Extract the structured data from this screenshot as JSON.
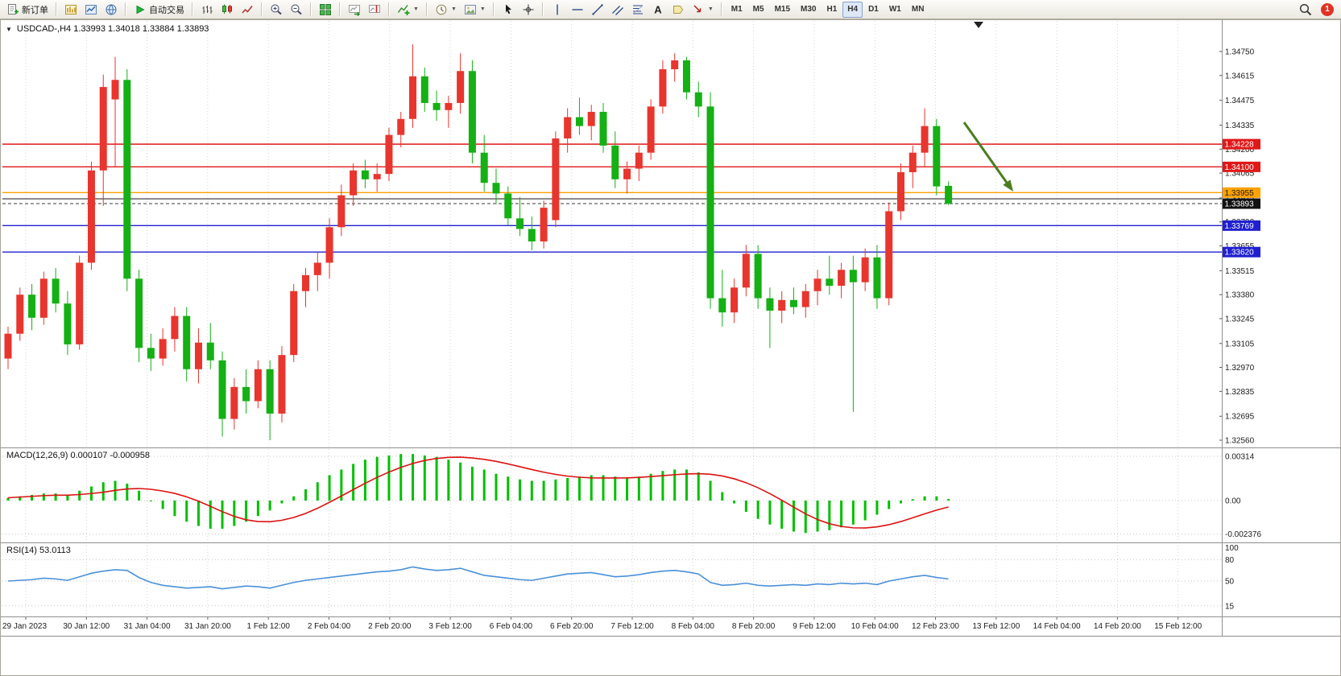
{
  "toolbar": {
    "groups": [
      {
        "name": "trade",
        "buttons": [
          {
            "name": "new-order-button",
            "icon": "doc-new-icon",
            "label": "新订单"
          }
        ]
      },
      {
        "name": "windows",
        "buttons": [
          {
            "name": "market-watch-button",
            "icon": "chart-gold-icon"
          },
          {
            "name": "data-window-button",
            "icon": "chart-blue-icon"
          },
          {
            "name": "web-terminal-button",
            "icon": "globe-icon"
          }
        ]
      },
      {
        "name": "auto-trading",
        "buttons": [
          {
            "name": "auto-trading-button",
            "icon": "play-icon",
            "label": "自动交易"
          }
        ]
      },
      {
        "name": "chart-types",
        "buttons": [
          {
            "name": "bar-chart-button",
            "icon": "ohlc-bars-icon"
          },
          {
            "name": "candlestick-chart-button",
            "icon": "candles-icon"
          },
          {
            "name": "line-chart-button",
            "icon": "line-chart-icon"
          }
        ]
      },
      {
        "name": "zoom",
        "buttons": [
          {
            "name": "zoom-in-button",
            "icon": "zoom-in-icon"
          },
          {
            "name": "zoom-out-button",
            "icon": "zoom-out-icon"
          }
        ]
      },
      {
        "name": "window-layout",
        "buttons": [
          {
            "name": "tile-windows-button",
            "icon": "tile-windows-icon"
          }
        ]
      },
      {
        "name": "chart-scroll",
        "buttons": [
          {
            "name": "auto-scroll-button",
            "icon": "auto-scroll-icon"
          },
          {
            "name": "chart-shift-button",
            "icon": "chart-shift-icon"
          }
        ]
      },
      {
        "name": "indicators",
        "buttons": [
          {
            "name": "indicators-button",
            "icon": "indicator-add-icon",
            "caret": true
          }
        ]
      },
      {
        "name": "periods-templates",
        "buttons": [
          {
            "name": "periods-button",
            "icon": "clock-icon",
            "caret": true
          },
          {
            "name": "templates-button",
            "icon": "template-icon",
            "caret": true
          }
        ]
      },
      {
        "name": "pointer-tools",
        "buttons": [
          {
            "name": "cursor-button",
            "icon": "cursor-icon"
          },
          {
            "name": "crosshair-button",
            "icon": "crosshair-icon"
          }
        ]
      },
      {
        "name": "draw-tools",
        "buttons": [
          {
            "name": "vertical-line-button",
            "icon": "vline-icon"
          },
          {
            "name": "horizontal-line-button",
            "icon": "hline-icon"
          },
          {
            "name": "trendline-button",
            "icon": "trendline-icon"
          },
          {
            "name": "channel-button",
            "icon": "channel-icon"
          },
          {
            "name": "fibonacci-button",
            "icon": "fibonacci-icon"
          },
          {
            "name": "text-button",
            "icon": "text-icon"
          },
          {
            "name": "label-button",
            "icon": "label-icon"
          },
          {
            "name": "arrows-button",
            "icon": "arrow-draw-icon",
            "caret": true
          }
        ]
      },
      {
        "name": "timeframes",
        "type": "timeframes"
      }
    ],
    "timeframes": {
      "items": [
        "M1",
        "M5",
        "M15",
        "M30",
        "H1",
        "H4",
        "D1",
        "W1",
        "MN"
      ],
      "active": "H4"
    },
    "right": {
      "search_icon": "search-icon",
      "badge_text": "1"
    }
  },
  "chart_header": {
    "collapse_glyph": "▼",
    "title": "USDCAD-,H4  1.33993 1.34018 1.33884 1.33893"
  },
  "chart_data": {
    "type": "candlestick",
    "symbol": "USDCAD-",
    "period": "H4",
    "ohlc_display": {
      "open": 1.33993,
      "high": 1.34018,
      "low": 1.33884,
      "close": 1.33893
    },
    "up_color": "#e8352e",
    "down_color": "#14b014",
    "price_ticks": [
      1.3475,
      1.34615,
      1.34475,
      1.34335,
      1.342,
      1.34065,
      1.33925,
      1.3379,
      1.33655,
      1.33515,
      1.3338,
      1.33245,
      1.33105,
      1.3297,
      1.32835,
      1.32695,
      1.3256
    ],
    "levels": [
      {
        "price": 1.34228,
        "color": "#e01818",
        "label": "1.34228",
        "text": "#ffffff"
      },
      {
        "price": 1.341,
        "color": "#e01818",
        "label": "1.34100",
        "text": "#ffffff"
      },
      {
        "price": 1.33955,
        "color": "#ffa200",
        "label": "1.33955",
        "text": "#1a1a1a"
      },
      {
        "price": 1.3392,
        "color": "#555555"
      },
      {
        "price": 1.33769,
        "color": "#2020d0",
        "label": "1.33769",
        "text": "#ffffff"
      },
      {
        "price": 1.3362,
        "color": "#2020d0",
        "label": "1.33620",
        "text": "#ffffff"
      }
    ],
    "current_price": {
      "value": 1.33893,
      "label": "1.33893",
      "box_color": "#111111",
      "text": "#ffffff"
    },
    "candles": [
      [
        1.3302,
        1.332,
        1.3296,
        1.3316
      ],
      [
        1.3316,
        1.3342,
        1.3312,
        1.3338
      ],
      [
        1.3338,
        1.3344,
        1.3318,
        1.3325
      ],
      [
        1.3325,
        1.3351,
        1.3321,
        1.3347
      ],
      [
        1.3347,
        1.3353,
        1.3328,
        1.3333
      ],
      [
        1.3333,
        1.334,
        1.3304,
        1.331
      ],
      [
        1.331,
        1.336,
        1.3307,
        1.3356
      ],
      [
        1.3356,
        1.3413,
        1.3352,
        1.3408
      ],
      [
        1.3408,
        1.3462,
        1.3388,
        1.3455
      ],
      [
        1.3448,
        1.3472,
        1.341,
        1.3459
      ],
      [
        1.3459,
        1.3465,
        1.334,
        1.3347
      ],
      [
        1.3347,
        1.3352,
        1.33,
        1.3308
      ],
      [
        1.3308,
        1.3316,
        1.3295,
        1.3302
      ],
      [
        1.3302,
        1.3319,
        1.3298,
        1.3313
      ],
      [
        1.3313,
        1.3331,
        1.3306,
        1.3326
      ],
      [
        1.3326,
        1.3331,
        1.3289,
        1.3296
      ],
      [
        1.3296,
        1.3319,
        1.3288,
        1.3311
      ],
      [
        1.3311,
        1.3322,
        1.3296,
        1.3301
      ],
      [
        1.3301,
        1.3306,
        1.3258,
        1.3268
      ],
      [
        1.3268,
        1.3291,
        1.3262,
        1.3286
      ],
      [
        1.3286,
        1.3296,
        1.3271,
        1.3278
      ],
      [
        1.3278,
        1.3301,
        1.3274,
        1.3296
      ],
      [
        1.3296,
        1.3301,
        1.3256,
        1.3271
      ],
      [
        1.3271,
        1.3309,
        1.3266,
        1.3304
      ],
      [
        1.3304,
        1.3344,
        1.33,
        1.334
      ],
      [
        1.334,
        1.3353,
        1.3331,
        1.3349
      ],
      [
        1.3349,
        1.3362,
        1.334,
        1.3356
      ],
      [
        1.3356,
        1.3381,
        1.3347,
        1.3376
      ],
      [
        1.3376,
        1.34,
        1.3371,
        1.3394
      ],
      [
        1.3394,
        1.3412,
        1.3388,
        1.3408
      ],
      [
        1.3408,
        1.3414,
        1.3398,
        1.3403
      ],
      [
        1.3403,
        1.3412,
        1.3396,
        1.3406
      ],
      [
        1.3406,
        1.3432,
        1.3402,
        1.3428
      ],
      [
        1.3428,
        1.3441,
        1.3421,
        1.3437
      ],
      [
        1.3437,
        1.3479,
        1.3432,
        1.3461
      ],
      [
        1.3461,
        1.3466,
        1.3441,
        1.3446
      ],
      [
        1.3446,
        1.3453,
        1.3436,
        1.3442
      ],
      [
        1.3442,
        1.345,
        1.3432,
        1.3446
      ],
      [
        1.3446,
        1.3474,
        1.344,
        1.3464
      ],
      [
        1.3464,
        1.347,
        1.3412,
        1.3418
      ],
      [
        1.3418,
        1.3428,
        1.3396,
        1.3401
      ],
      [
        1.3401,
        1.3409,
        1.3389,
        1.3395
      ],
      [
        1.3395,
        1.3399,
        1.3377,
        1.3381
      ],
      [
        1.3381,
        1.3393,
        1.3371,
        1.3375
      ],
      [
        1.3375,
        1.3382,
        1.3363,
        1.3368
      ],
      [
        1.3368,
        1.3391,
        1.3364,
        1.3387
      ],
      [
        1.338,
        1.343,
        1.3376,
        1.3426
      ],
      [
        1.3426,
        1.3443,
        1.3418,
        1.3438
      ],
      [
        1.3438,
        1.3449,
        1.3428,
        1.3433
      ],
      [
        1.3433,
        1.3445,
        1.3425,
        1.3441
      ],
      [
        1.3441,
        1.3446,
        1.3418,
        1.3422
      ],
      [
        1.3422,
        1.343,
        1.3398,
        1.3403
      ],
      [
        1.3403,
        1.3413,
        1.3395,
        1.3409
      ],
      [
        1.3409,
        1.3422,
        1.3402,
        1.3418
      ],
      [
        1.3418,
        1.3448,
        1.3414,
        1.3444
      ],
      [
        1.3444,
        1.347,
        1.344,
        1.3465
      ],
      [
        1.3465,
        1.3474,
        1.3458,
        1.347
      ],
      [
        1.347,
        1.3472,
        1.3448,
        1.3452
      ],
      [
        1.3452,
        1.3458,
        1.3438,
        1.3444
      ],
      [
        1.3444,
        1.3452,
        1.333,
        1.3336
      ],
      [
        1.3336,
        1.3352,
        1.332,
        1.3328
      ],
      [
        1.3328,
        1.3347,
        1.3322,
        1.3342
      ],
      [
        1.3342,
        1.3366,
        1.3337,
        1.3361
      ],
      [
        1.3361,
        1.3366,
        1.333,
        1.3336
      ],
      [
        1.3336,
        1.3342,
        1.3308,
        1.3329
      ],
      [
        1.3329,
        1.334,
        1.3322,
        1.3335
      ],
      [
        1.3335,
        1.3342,
        1.3327,
        1.3331
      ],
      [
        1.3331,
        1.3344,
        1.3325,
        1.334
      ],
      [
        1.334,
        1.3352,
        1.3332,
        1.3347
      ],
      [
        1.3347,
        1.336,
        1.3338,
        1.3343
      ],
      [
        1.3343,
        1.3356,
        1.3336,
        1.3352
      ],
      [
        1.3352,
        1.336,
        1.3272,
        1.3345
      ],
      [
        1.3345,
        1.3364,
        1.334,
        1.3359
      ],
      [
        1.3359,
        1.3366,
        1.333,
        1.3336
      ],
      [
        1.3336,
        1.339,
        1.3332,
        1.3385
      ],
      [
        1.3385,
        1.3412,
        1.338,
        1.3407
      ],
      [
        1.3407,
        1.3422,
        1.3398,
        1.3418
      ],
      [
        1.3418,
        1.3443,
        1.341,
        1.3433
      ],
      [
        1.3433,
        1.3437,
        1.3394,
        1.3399
      ],
      [
        1.33993,
        1.34018,
        1.33884,
        1.33893
      ]
    ],
    "dates": [
      "29 Jan 2023",
      "30 Jan 12:00",
      "31 Jan 04:00",
      "31 Jan 20:00",
      "1 Feb 12:00",
      "2 Feb 04:00",
      "2 Feb 20:00",
      "3 Feb 12:00",
      "6 Feb 04:00",
      "6 Feb 20:00",
      "7 Feb 12:00",
      "8 Feb 04:00",
      "8 Feb 20:00",
      "9 Feb 12:00",
      "10 Feb 04:00",
      "12 Feb 23:00",
      "13 Feb 12:00",
      "14 Feb 04:00",
      "14 Feb 20:00",
      "15 Feb 12:00"
    ],
    "macd": {
      "label": "MACD(12,26,9)",
      "values_text": "0.000107 -0.000958",
      "line_color": "#00c000",
      "signal_color": "#dd1111",
      "axis": [
        {
          "v": 0.00314,
          "t": "0.00314"
        },
        {
          "v": 0,
          "t": "0.00"
        },
        {
          "v": -0.002376,
          "t": "-0.002376"
        }
      ],
      "hist": [
        0.0002,
        0.0003,
        0.0004,
        0.0005,
        0.0005,
        0.0004,
        0.0007,
        0.001,
        0.0013,
        0.0014,
        0.0012,
        0.0007,
        0.0,
        -0.0006,
        -0.0011,
        -0.0015,
        -0.0018,
        -0.002,
        -0.002,
        -0.0018,
        -0.0015,
        -0.0011,
        -0.0007,
        -0.0002,
        0.0003,
        0.0008,
        0.0013,
        0.0018,
        0.0022,
        0.0026,
        0.0029,
        0.0031,
        0.0032,
        0.0033,
        0.0033,
        0.0032,
        0.0031,
        0.0029,
        0.0027,
        0.0024,
        0.0022,
        0.0019,
        0.0017,
        0.0015,
        0.0014,
        0.0014,
        0.0015,
        0.0016,
        0.0017,
        0.0018,
        0.0018,
        0.0017,
        0.0016,
        0.0017,
        0.0019,
        0.0021,
        0.0022,
        0.0022,
        0.002,
        0.0014,
        0.0006,
        -0.0002,
        -0.0008,
        -0.0013,
        -0.0017,
        -0.002,
        -0.0022,
        -0.0023,
        -0.0022,
        -0.0021,
        -0.0019,
        -0.0017,
        -0.0014,
        -0.001,
        -0.0006,
        -0.0002,
        0.0001,
        0.0003,
        0.0003,
        0.000107
      ]
    },
    "rsi": {
      "label": "RSI(14)",
      "value_text": "53.0113",
      "line_color": "#4a90d9",
      "axis": [
        100,
        80,
        50,
        15
      ],
      "values": [
        50,
        51,
        52,
        54,
        53,
        51,
        56,
        61,
        64,
        66,
        65,
        55,
        48,
        44,
        42,
        40,
        41,
        42,
        39,
        41,
        43,
        42,
        40,
        44,
        48,
        51,
        53,
        55,
        57,
        59,
        61,
        63,
        64,
        66,
        70,
        67,
        65,
        66,
        68,
        63,
        58,
        56,
        54,
        52,
        51,
        54,
        57,
        60,
        61,
        62,
        59,
        56,
        57,
        59,
        62,
        64,
        65,
        63,
        60,
        48,
        44,
        45,
        47,
        44,
        43,
        44,
        45,
        44,
        46,
        45,
        47,
        46,
        47,
        45,
        50,
        53,
        56,
        58,
        55,
        53
      ]
    },
    "annotations": [
      {
        "type": "arrow",
        "from": [
          1197,
          152
        ],
        "to": [
          1258,
          238
        ],
        "color": "#4b7d1e"
      }
    ]
  }
}
